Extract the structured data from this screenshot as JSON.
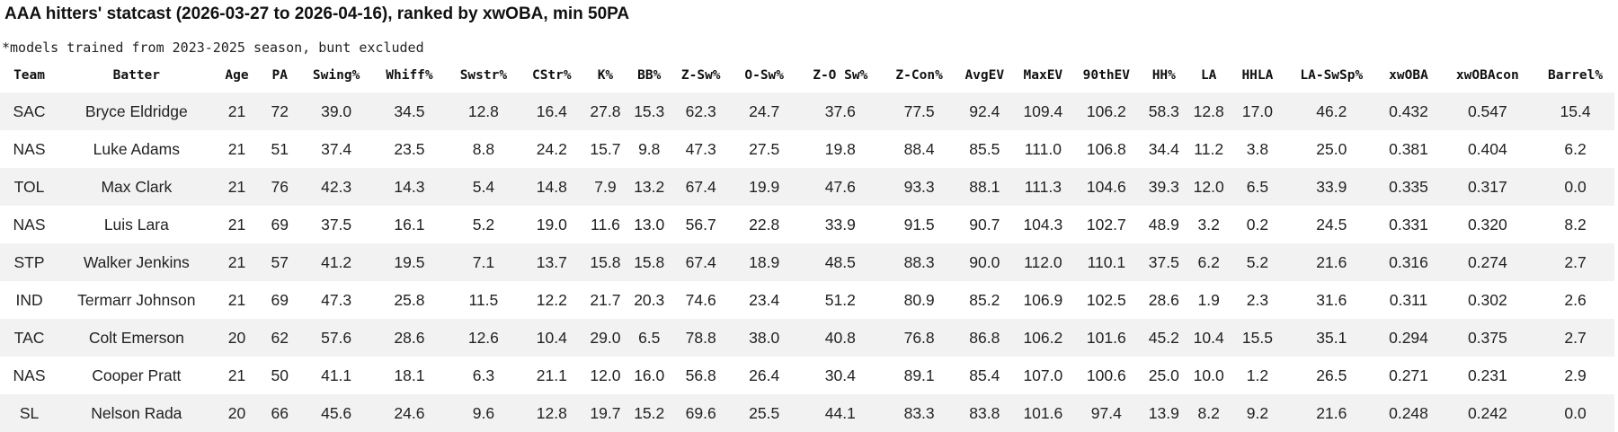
{
  "title": "AAA hitters' statcast (2026-03-27 to 2026-04-16), ranked by xwOBA, min 50PA",
  "note": "*models trained from 2023-2025 season, bunt excluded",
  "table": {
    "headers": [
      "Team",
      "Batter",
      "Age",
      "PA",
      "Swing%",
      "Whiff%",
      "Swstr%",
      "CStr%",
      "K%",
      "BB%",
      "Z-Sw%",
      "O-Sw%",
      "Z-O Sw%",
      "Z-Con%",
      "AvgEV",
      "MaxEV",
      "90thEV",
      "HH%",
      "LA",
      "HHLA",
      "LA-SwSp%",
      "xwOBA",
      "xwOBAcon",
      "Barrel%"
    ],
    "rows": [
      [
        "SAC",
        "Bryce Eldridge",
        "21",
        "72",
        "39.0",
        "34.5",
        "12.8",
        "16.4",
        "27.8",
        "15.3",
        "62.3",
        "24.7",
        "37.6",
        "77.5",
        "92.4",
        "109.4",
        "106.2",
        "58.3",
        "12.8",
        "17.0",
        "46.2",
        "0.432",
        "0.547",
        "15.4"
      ],
      [
        "NAS",
        "Luke Adams",
        "21",
        "51",
        "37.4",
        "23.5",
        "8.8",
        "24.2",
        "15.7",
        "9.8",
        "47.3",
        "27.5",
        "19.8",
        "88.4",
        "85.5",
        "111.0",
        "106.8",
        "34.4",
        "11.2",
        "3.8",
        "25.0",
        "0.381",
        "0.404",
        "6.2"
      ],
      [
        "TOL",
        "Max Clark",
        "21",
        "76",
        "42.3",
        "14.3",
        "5.4",
        "14.8",
        "7.9",
        "13.2",
        "67.4",
        "19.9",
        "47.6",
        "93.3",
        "88.1",
        "111.3",
        "104.6",
        "39.3",
        "12.0",
        "6.5",
        "33.9",
        "0.335",
        "0.317",
        "0.0"
      ],
      [
        "NAS",
        "Luis Lara",
        "21",
        "69",
        "37.5",
        "16.1",
        "5.2",
        "19.0",
        "11.6",
        "13.0",
        "56.7",
        "22.8",
        "33.9",
        "91.5",
        "90.7",
        "104.3",
        "102.7",
        "48.9",
        "3.2",
        "0.2",
        "24.5",
        "0.331",
        "0.320",
        "8.2"
      ],
      [
        "STP",
        "Walker Jenkins",
        "21",
        "57",
        "41.2",
        "19.5",
        "7.1",
        "13.7",
        "15.8",
        "15.8",
        "67.4",
        "18.9",
        "48.5",
        "88.3",
        "90.0",
        "112.0",
        "110.1",
        "37.5",
        "6.2",
        "5.2",
        "21.6",
        "0.316",
        "0.274",
        "2.7"
      ],
      [
        "IND",
        "Termarr Johnson",
        "21",
        "69",
        "47.3",
        "25.8",
        "11.5",
        "12.2",
        "21.7",
        "20.3",
        "74.6",
        "23.4",
        "51.2",
        "80.9",
        "85.2",
        "106.9",
        "102.5",
        "28.6",
        "1.9",
        "2.3",
        "31.6",
        "0.311",
        "0.302",
        "2.6"
      ],
      [
        "TAC",
        "Colt Emerson",
        "20",
        "62",
        "57.6",
        "28.6",
        "12.6",
        "10.4",
        "29.0",
        "6.5",
        "78.8",
        "38.0",
        "40.8",
        "76.8",
        "86.8",
        "106.2",
        "101.6",
        "45.2",
        "10.4",
        "15.5",
        "35.1",
        "0.294",
        "0.375",
        "2.7"
      ],
      [
        "NAS",
        "Cooper Pratt",
        "21",
        "50",
        "41.1",
        "18.1",
        "6.3",
        "21.1",
        "12.0",
        "16.0",
        "56.8",
        "26.4",
        "30.4",
        "89.1",
        "85.4",
        "107.0",
        "100.6",
        "25.0",
        "10.0",
        "1.2",
        "26.5",
        "0.271",
        "0.231",
        "2.9"
      ],
      [
        "SL",
        "Nelson Rada",
        "20",
        "66",
        "45.6",
        "24.6",
        "9.6",
        "12.8",
        "19.7",
        "15.2",
        "69.6",
        "25.5",
        "44.1",
        "83.3",
        "83.8",
        "101.6",
        "97.4",
        "13.9",
        "8.2",
        "9.2",
        "21.6",
        "0.248",
        "0.242",
        "0.0"
      ]
    ]
  }
}
